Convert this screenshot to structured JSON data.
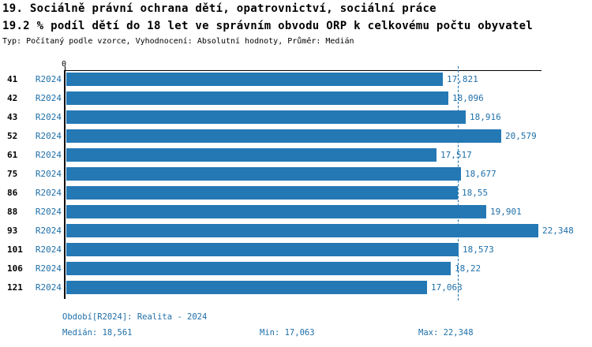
{
  "header": {
    "title": "19. Sociálně právní ochrana dětí, opatrovnictví, sociální práce",
    "subtitle": "19.2 % podíl dětí do 18 let ve správním obvodu ORP k celkovému počtu obyvatel",
    "meta": "Typ: Počítaný podle vzorce, Vyhodnocení: Absolutní hodnoty, Průměr: Medián"
  },
  "colors": {
    "bar": "#2478b4",
    "blue_text": "#1e6fa9",
    "axis": "#000000"
  },
  "chart_data": {
    "type": "bar",
    "orientation": "horizontal",
    "title": "19. Sociálně právní ochrana dětí, opatrovnictví, sociální práce",
    "subtitle": "19.2 % podíl dětí do 18 let ve správním obvodu ORP k celkovému počtu obyvatel",
    "categories": [
      "41",
      "42",
      "43",
      "52",
      "61",
      "75",
      "86",
      "88",
      "93",
      "101",
      "106",
      "121"
    ],
    "series": [
      {
        "name": "R2024",
        "values": [
          17.821,
          18.096,
          18.916,
          20.579,
          17.517,
          18.677,
          18.55,
          19.901,
          22.348,
          18.573,
          18.22,
          17.063
        ]
      }
    ],
    "value_labels": [
      "17,821",
      "18,096",
      "18,916",
      "20,579",
      "17,517",
      "18,677",
      "18,55",
      "19,901",
      "22,348",
      "18,573",
      "18,22",
      "17,063"
    ],
    "xlabel": "",
    "ylabel": "",
    "xlim": [
      0,
      22.5
    ],
    "x_ticks": [
      "0"
    ],
    "median_line_value": 18.561,
    "grid": false,
    "legend_position": "none"
  },
  "footer": {
    "period": "Období[R2024]: Realita - 2024",
    "median": "Medián: 18,561",
    "min": "Min: 17,063",
    "max": "Max: 22,348"
  }
}
